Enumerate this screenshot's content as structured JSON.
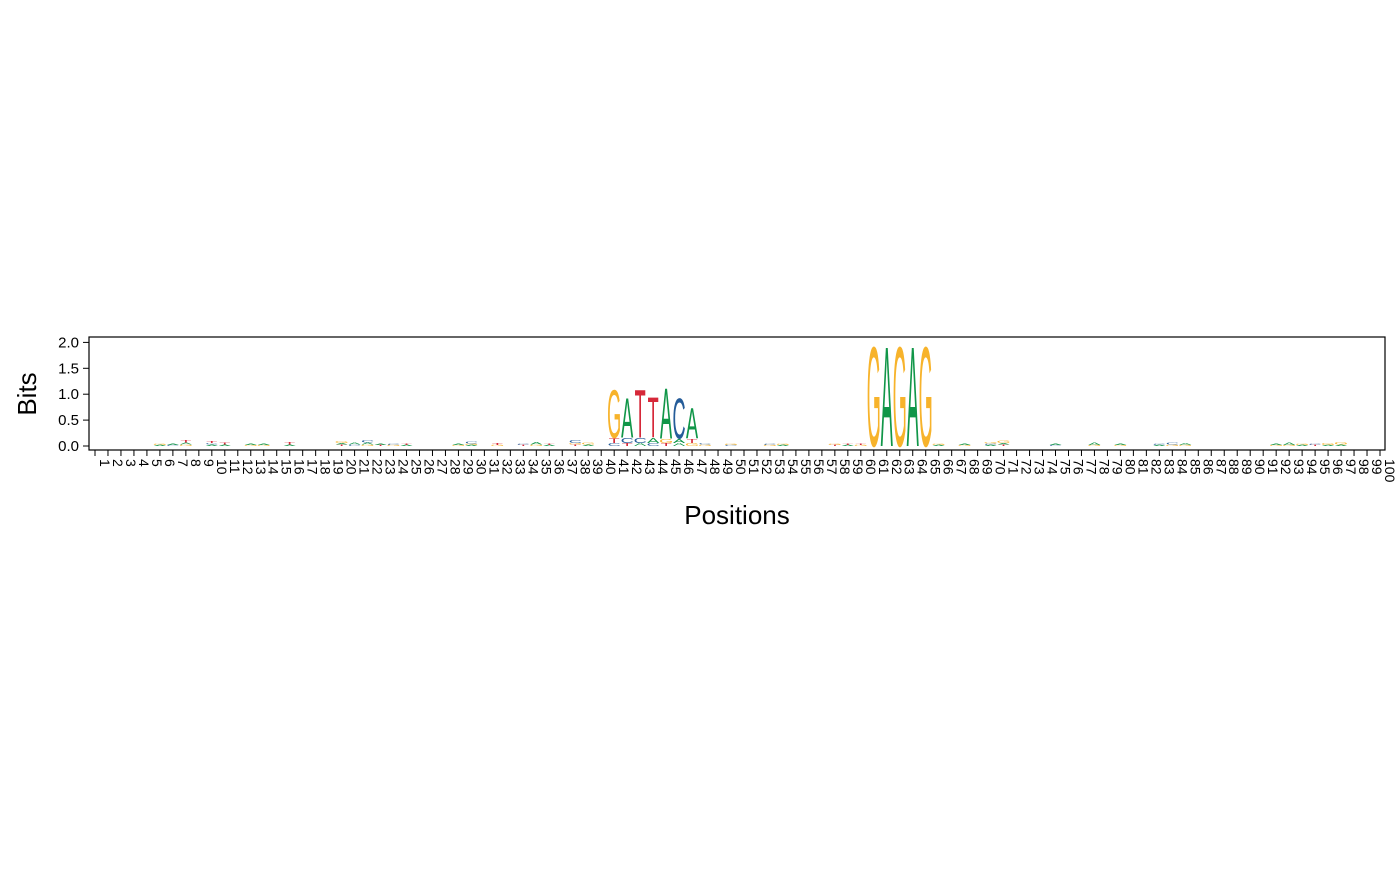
{
  "chart_data": {
    "type": "sequence-logo",
    "xlabel": "Positions",
    "ylabel": "Bits",
    "ylim": [
      0,
      2.1
    ],
    "yticks": [
      "0.0",
      "0.5",
      "1.0",
      "1.5",
      "2.0"
    ],
    "ytick_values": [
      0,
      0.5,
      1,
      1.5,
      2
    ],
    "n_positions": 100,
    "xticks": [
      "1",
      "2",
      "3",
      "4",
      "5",
      "6",
      "7",
      "8",
      "9",
      "10",
      "11",
      "12",
      "13",
      "14",
      "15",
      "16",
      "17",
      "18",
      "19",
      "20",
      "21",
      "22",
      "23",
      "24",
      "25",
      "26",
      "27",
      "28",
      "29",
      "30",
      "31",
      "32",
      "33",
      "34",
      "35",
      "36",
      "37",
      "38",
      "39",
      "40",
      "41",
      "42",
      "43",
      "44",
      "45",
      "46",
      "47",
      "48",
      "49",
      "50",
      "51",
      "52",
      "53",
      "54",
      "55",
      "56",
      "57",
      "58",
      "59",
      "60",
      "61",
      "62",
      "63",
      "64",
      "65",
      "66",
      "67",
      "68",
      "69",
      "70",
      "71",
      "72",
      "73",
      "74",
      "75",
      "76",
      "77",
      "78",
      "79",
      "80",
      "81",
      "82",
      "83",
      "84",
      "85",
      "86",
      "87",
      "88",
      "89",
      "90",
      "91",
      "92",
      "93",
      "94",
      "95",
      "96",
      "97",
      "98",
      "99",
      "100"
    ],
    "grid": false,
    "letter_colors": {
      "A": "#109648",
      "C": "#255C99",
      "G": "#F7B32B",
      "T": "#D62839"
    },
    "stacks": [
      {
        "pos": 6,
        "letters": [
          [
            "A",
            0.02
          ],
          [
            "G",
            0.02
          ]
        ]
      },
      {
        "pos": 7,
        "letters": [
          [
            "C",
            0.02
          ],
          [
            "A",
            0.03
          ]
        ]
      },
      {
        "pos": 8,
        "letters": [
          [
            "G",
            0.03
          ],
          [
            "A",
            0.04
          ],
          [
            "T",
            0.05
          ]
        ]
      },
      {
        "pos": 10,
        "letters": [
          [
            "A",
            0.03
          ],
          [
            "C",
            0.03
          ],
          [
            "T",
            0.04
          ]
        ]
      },
      {
        "pos": 11,
        "letters": [
          [
            "A",
            0.03
          ],
          [
            "T",
            0.04
          ]
        ]
      },
      {
        "pos": 13,
        "letters": [
          [
            "G",
            0.02
          ],
          [
            "A",
            0.03
          ]
        ]
      },
      {
        "pos": 14,
        "letters": [
          [
            "G",
            0.02
          ],
          [
            "A",
            0.03
          ]
        ]
      },
      {
        "pos": 16,
        "letters": [
          [
            "A",
            0.03
          ],
          [
            "T",
            0.05
          ]
        ]
      },
      {
        "pos": 20,
        "letters": [
          [
            "T",
            0.03
          ],
          [
            "A",
            0.03
          ],
          [
            "G",
            0.04
          ]
        ]
      },
      {
        "pos": 21,
        "letters": [
          [
            "C",
            0.03
          ],
          [
            "A",
            0.04
          ]
        ]
      },
      {
        "pos": 22,
        "letters": [
          [
            "G",
            0.03
          ],
          [
            "A",
            0.04
          ],
          [
            "C",
            0.05
          ]
        ]
      },
      {
        "pos": 23,
        "letters": [
          [
            "T",
            0.02
          ],
          [
            "A",
            0.02
          ]
        ]
      },
      {
        "pos": 24,
        "letters": [
          [
            "G",
            0.02
          ],
          [
            "C",
            0.02
          ]
        ]
      },
      {
        "pos": 25,
        "letters": [
          [
            "A",
            0.02
          ],
          [
            "T",
            0.03
          ]
        ]
      },
      {
        "pos": 29,
        "letters": [
          [
            "G",
            0.02
          ],
          [
            "A",
            0.03
          ]
        ]
      },
      {
        "pos": 30,
        "letters": [
          [
            "A",
            0.02
          ],
          [
            "G",
            0.03
          ],
          [
            "C",
            0.04
          ]
        ]
      },
      {
        "pos": 32,
        "letters": [
          [
            "G",
            0.02
          ],
          [
            "T",
            0.04
          ]
        ]
      },
      {
        "pos": 34,
        "letters": [
          [
            "T",
            0.02
          ],
          [
            "C",
            0.03
          ]
        ]
      },
      {
        "pos": 35,
        "letters": [
          [
            "G",
            0.03
          ],
          [
            "A",
            0.05
          ]
        ]
      },
      {
        "pos": 36,
        "letters": [
          [
            "A",
            0.02
          ],
          [
            "T",
            0.03
          ]
        ]
      },
      {
        "pos": 38,
        "letters": [
          [
            "T",
            0.03
          ],
          [
            "G",
            0.03
          ],
          [
            "C",
            0.06
          ]
        ]
      },
      {
        "pos": 39,
        "letters": [
          [
            "A",
            0.03
          ],
          [
            "G",
            0.04
          ]
        ]
      },
      {
        "pos": 41,
        "letters": [
          [
            "C",
            0.06
          ],
          [
            "T",
            0.09
          ],
          [
            "G",
            0.95
          ]
        ]
      },
      {
        "pos": 42,
        "letters": [
          [
            "T",
            0.06
          ],
          [
            "C",
            0.1
          ],
          [
            "A",
            0.78
          ]
        ]
      },
      {
        "pos": 43,
        "letters": [
          [
            "A",
            0.06
          ],
          [
            "C",
            0.1
          ],
          [
            "T",
            0.95
          ]
        ]
      },
      {
        "pos": 44,
        "letters": [
          [
            "C",
            0.06
          ],
          [
            "A",
            0.1
          ],
          [
            "T",
            0.8
          ]
        ]
      },
      {
        "pos": 45,
        "letters": [
          [
            "T",
            0.06
          ],
          [
            "G",
            0.08
          ],
          [
            "A",
            1.0
          ]
        ]
      },
      {
        "pos": 46,
        "letters": [
          [
            "A",
            0.06
          ],
          [
            "A",
            0.08
          ],
          [
            "C",
            0.8
          ]
        ]
      },
      {
        "pos": 47,
        "letters": [
          [
            "G",
            0.06
          ],
          [
            "T",
            0.08
          ],
          [
            "A",
            0.6
          ]
        ]
      },
      {
        "pos": 48,
        "letters": [
          [
            "G",
            0.03
          ],
          [
            "C",
            0.03
          ]
        ]
      },
      {
        "pos": 50,
        "letters": [
          [
            "C",
            0.02
          ],
          [
            "G",
            0.02
          ]
        ]
      },
      {
        "pos": 53,
        "letters": [
          [
            "G",
            0.02
          ],
          [
            "C",
            0.03
          ]
        ]
      },
      {
        "pos": 54,
        "letters": [
          [
            "A",
            0.02
          ],
          [
            "G",
            0.03
          ]
        ]
      },
      {
        "pos": 58,
        "letters": [
          [
            "T",
            0.02
          ],
          [
            "G",
            0.02
          ]
        ]
      },
      {
        "pos": 59,
        "letters": [
          [
            "A",
            0.02
          ],
          [
            "T",
            0.03
          ]
        ]
      },
      {
        "pos": 60,
        "letters": [
          [
            "G",
            0.02
          ],
          [
            "T",
            0.03
          ]
        ]
      },
      {
        "pos": 61,
        "letters": [
          [
            "G",
            1.98
          ]
        ]
      },
      {
        "pos": 62,
        "letters": [
          [
            "A",
            1.98
          ]
        ]
      },
      {
        "pos": 63,
        "letters": [
          [
            "G",
            1.98
          ]
        ]
      },
      {
        "pos": 64,
        "letters": [
          [
            "A",
            1.98
          ]
        ]
      },
      {
        "pos": 65,
        "letters": [
          [
            "G",
            1.98
          ]
        ]
      },
      {
        "pos": 66,
        "letters": [
          [
            "A",
            0.02
          ],
          [
            "G",
            0.03
          ]
        ]
      },
      {
        "pos": 68,
        "letters": [
          [
            "G",
            0.02
          ],
          [
            "A",
            0.02
          ]
        ]
      },
      {
        "pos": 70,
        "letters": [
          [
            "A",
            0.02
          ],
          [
            "C",
            0.03
          ],
          [
            "G",
            0.03
          ]
        ]
      },
      {
        "pos": 71,
        "letters": [
          [
            "T",
            0.03
          ],
          [
            "A",
            0.03
          ],
          [
            "G",
            0.05
          ]
        ]
      },
      {
        "pos": 75,
        "letters": [
          [
            "C",
            0.02
          ],
          [
            "A",
            0.03
          ]
        ]
      },
      {
        "pos": 78,
        "letters": [
          [
            "G",
            0.02
          ],
          [
            "A",
            0.05
          ]
        ]
      },
      {
        "pos": 80,
        "letters": [
          [
            "G",
            0.02
          ],
          [
            "A",
            0.02
          ]
        ]
      },
      {
        "pos": 83,
        "letters": [
          [
            "A",
            0.02
          ],
          [
            "C",
            0.03
          ]
        ]
      },
      {
        "pos": 84,
        "letters": [
          [
            "G",
            0.03
          ],
          [
            "C",
            0.04
          ]
        ]
      },
      {
        "pos": 85,
        "letters": [
          [
            "G",
            0.02
          ],
          [
            "A",
            0.04
          ]
        ]
      },
      {
        "pos": 92,
        "letters": [
          [
            "G",
            0.02
          ],
          [
            "A",
            0.02
          ]
        ]
      },
      {
        "pos": 93,
        "letters": [
          [
            "G",
            0.02
          ],
          [
            "A",
            0.05
          ]
        ]
      },
      {
        "pos": 94,
        "letters": [
          [
            "A",
            0.02
          ],
          [
            "G",
            0.03
          ]
        ]
      },
      {
        "pos": 95,
        "letters": [
          [
            "T",
            0.02
          ],
          [
            "C",
            0.03
          ]
        ]
      },
      {
        "pos": 96,
        "letters": [
          [
            "A",
            0.02
          ],
          [
            "G",
            0.04
          ]
        ]
      },
      {
        "pos": 97,
        "letters": [
          [
            "A",
            0.03
          ],
          [
            "G",
            0.05
          ]
        ]
      }
    ]
  }
}
